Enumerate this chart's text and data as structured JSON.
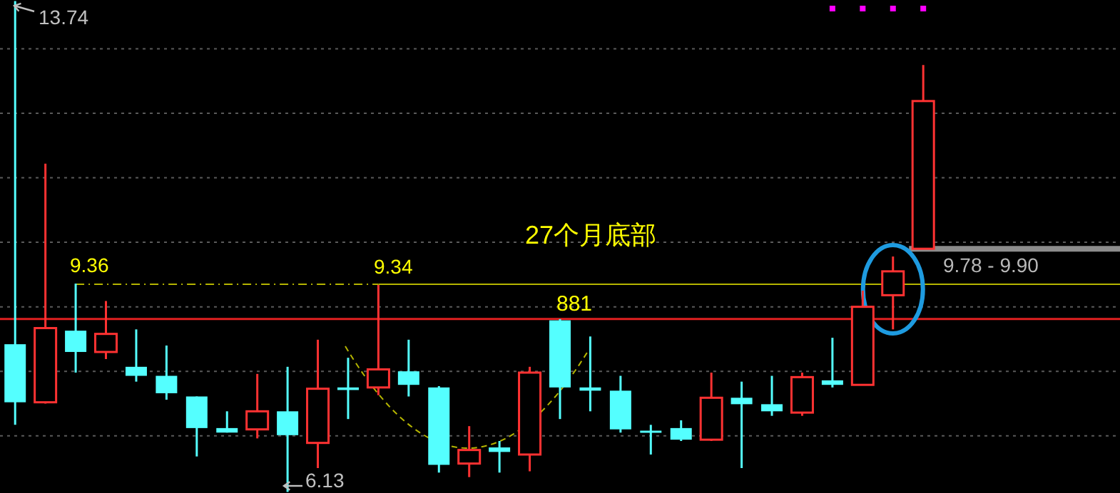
{
  "chart_data": {
    "type": "candlestick",
    "categories": [
      null,
      null,
      null,
      null,
      null,
      null,
      null,
      null,
      null,
      null,
      null,
      null,
      null,
      null,
      null,
      null,
      null,
      null,
      null,
      null,
      null,
      null,
      null,
      null,
      null,
      null,
      null,
      null,
      null,
      null,
      null,
      null,
      null,
      null,
      null,
      null,
      null
    ],
    "ohlc": [
      [
        8.42,
        13.74,
        7.17,
        7.52
      ],
      [
        7.52,
        11.22,
        7.5,
        8.67
      ],
      [
        8.63,
        9.36,
        7.98,
        8.3
      ],
      [
        8.3,
        9.09,
        8.19,
        8.58
      ],
      [
        8.07,
        8.65,
        7.84,
        7.93
      ],
      [
        7.93,
        8.4,
        7.56,
        7.66
      ],
      [
        7.61,
        7.61,
        6.68,
        7.12
      ],
      [
        7.12,
        7.38,
        7.05,
        7.05
      ],
      [
        7.1,
        7.96,
        6.96,
        7.38
      ],
      [
        7.38,
        8.07,
        6.13,
        7.01
      ],
      [
        6.89,
        8.49,
        6.5,
        7.73
      ],
      [
        7.75,
        8.21,
        7.26,
        7.71
      ],
      [
        7.75,
        9.34,
        7.63,
        8.03
      ],
      [
        8.0,
        8.49,
        7.61,
        7.79
      ],
      [
        7.75,
        7.77,
        6.43,
        6.55
      ],
      [
        6.57,
        7.15,
        6.36,
        6.78
      ],
      [
        6.82,
        6.92,
        6.43,
        6.75
      ],
      [
        6.71,
        8.07,
        6.45,
        7.98
      ],
      [
        8.79,
        8.81,
        7.26,
        7.75
      ],
      [
        7.75,
        8.54,
        7.38,
        7.7
      ],
      [
        7.7,
        7.93,
        7.05,
        7.1
      ],
      [
        7.08,
        7.17,
        6.71,
        7.06
      ],
      [
        7.12,
        7.24,
        6.92,
        6.94
      ],
      [
        6.94,
        7.98,
        6.92,
        7.59
      ],
      [
        7.59,
        7.84,
        6.5,
        7.49
      ],
      [
        7.49,
        7.93,
        7.31,
        7.38
      ],
      [
        7.36,
        7.98,
        7.31,
        7.91
      ],
      [
        7.86,
        8.52,
        7.75,
        7.79
      ],
      [
        7.79,
        9.25,
        7.79,
        9.0
      ],
      [
        9.18,
        9.78,
        8.65,
        9.55
      ],
      [
        9.9,
        12.75,
        9.9,
        12.19
      ],
      null,
      null,
      null,
      null,
      null,
      null
    ],
    "colors": [
      "#54ffff",
      "#ff3232",
      "#54ffff",
      "#ff3232",
      "#54ffff",
      "#54ffff",
      "#54ffff",
      "#54ffff",
      "#ff3232",
      "#54ffff",
      "#ff3232",
      "#54ffff",
      "#ff3232",
      "#54ffff",
      "#54ffff",
      "#ff3232",
      "#54ffff",
      "#ff3232",
      "#54ffff",
      "#54ffff",
      "#54ffff",
      "#54ffff",
      "#54ffff",
      "#ff3232",
      "#54ffff",
      "#54ffff",
      "#ff3232",
      "#54ffff",
      "#ff3232",
      "#ff3232",
      "#ff3232",
      null,
      null,
      null,
      null,
      null,
      null
    ],
    "yticks": [
      {
        "value": 7,
        "label": null
      },
      {
        "value": 8,
        "label": null
      },
      {
        "value": 9,
        "label": null
      },
      {
        "value": 10,
        "label": null
      },
      {
        "value": 11,
        "label": null
      },
      {
        "value": 12,
        "label": null
      },
      {
        "value": 13,
        "label": null
      }
    ],
    "grid": "y",
    "ref_lines": [
      {
        "axis": "y",
        "value": 9.35,
        "color": "#b4b400"
      },
      {
        "axis": "y",
        "value": 8.81,
        "color": "#e02020"
      },
      {
        "axis": "y",
        "value": 9.9,
        "color": "#8c8c8c"
      }
    ],
    "annotations": [
      "13.74",
      "9.36",
      "9.34",
      "881",
      "27个月底部",
      "9.78 - 9.90",
      "6.13"
    ]
  }
}
